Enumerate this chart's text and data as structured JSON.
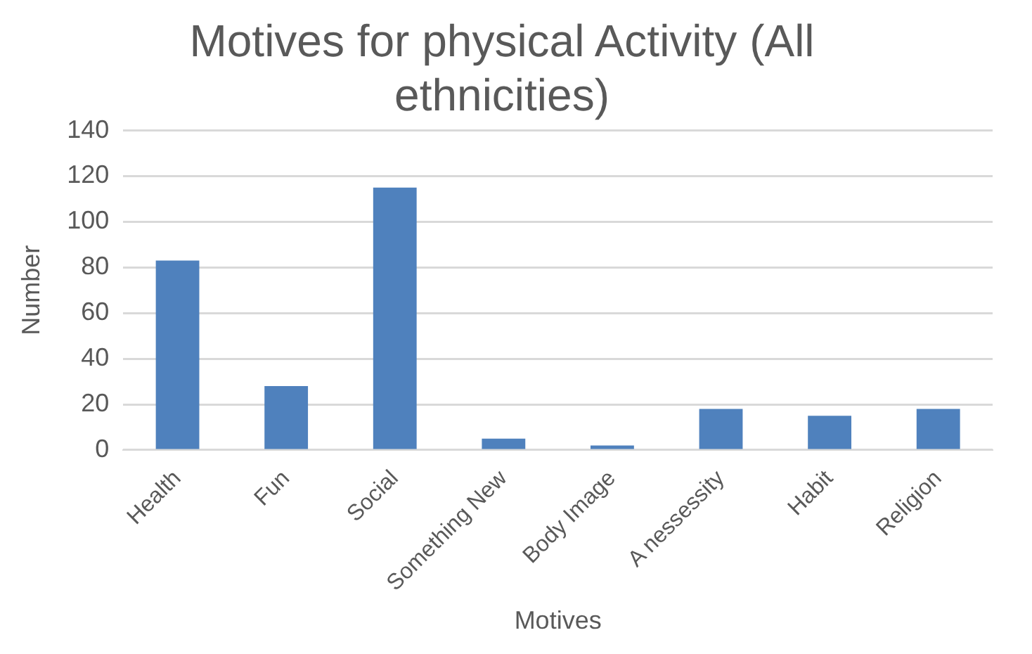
{
  "chart_data": {
    "type": "bar",
    "title": "Motives for physical Activity (All ethnicities)",
    "xlabel": "Motives",
    "ylabel": "Number",
    "categories": [
      "Health",
      "Fun",
      "Social",
      "Something New",
      "Body Image",
      "A nessessity",
      "Habit",
      "Religion"
    ],
    "values": [
      83,
      28,
      115,
      5,
      2,
      18,
      15,
      18
    ],
    "color": "#4f81bd",
    "ylim": [
      0,
      140
    ],
    "yticks": [
      0,
      20,
      40,
      60,
      80,
      100,
      120,
      140
    ],
    "grid": "y",
    "legend": false
  }
}
